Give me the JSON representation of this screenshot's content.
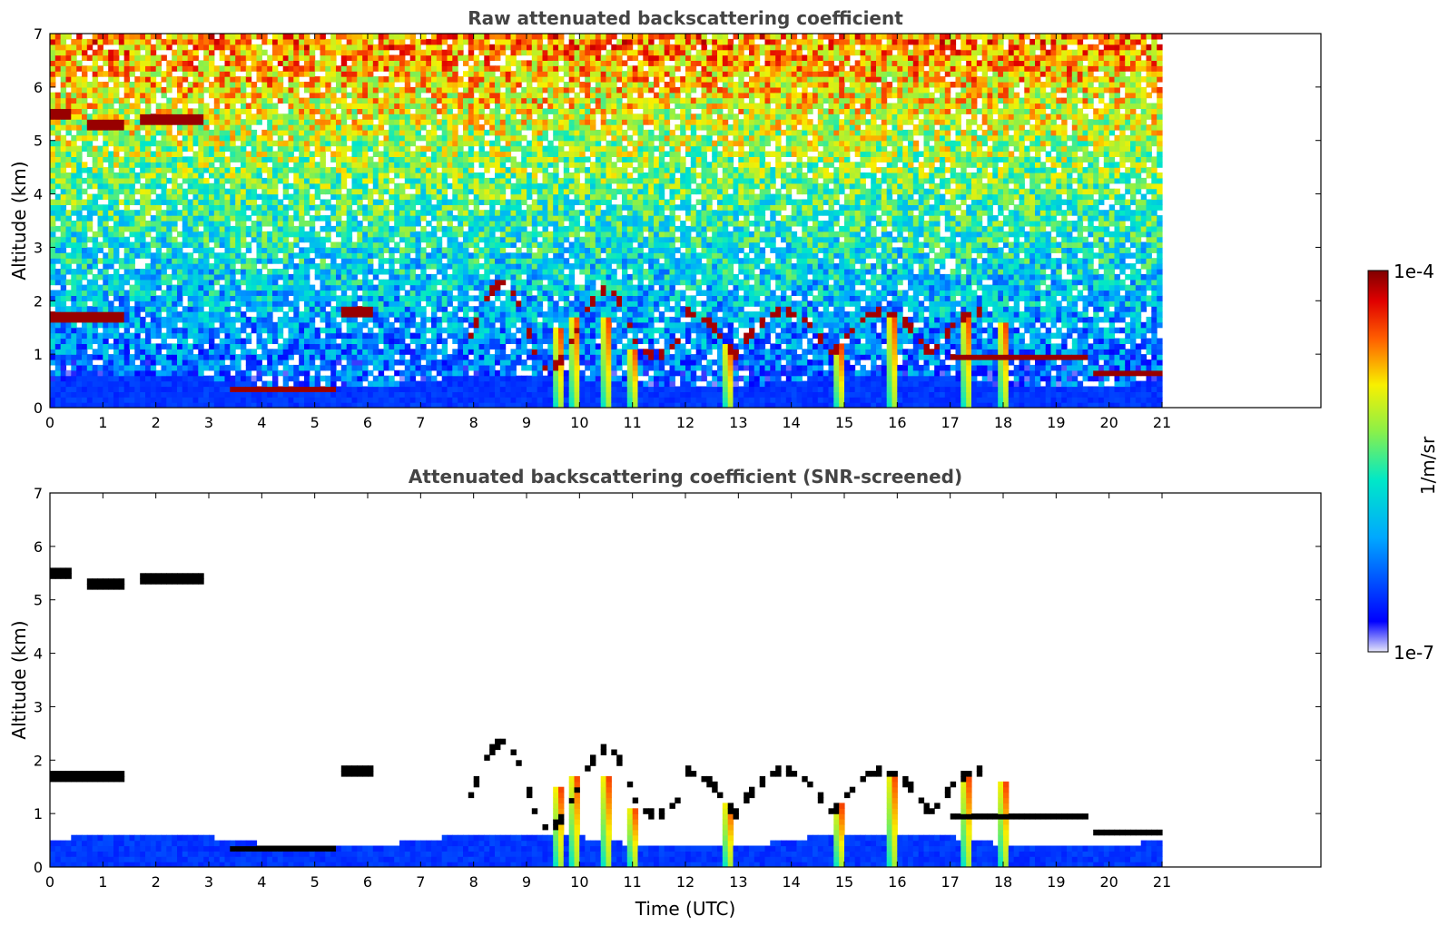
{
  "chart_data": [
    {
      "type": "heatmap",
      "title": "Raw attenuated backscattering coefficient",
      "xlabel": "",
      "ylabel": "Altitude (km)",
      "xlim": [
        0,
        24
      ],
      "ylim": [
        0,
        7
      ],
      "x_ticks": [
        "0",
        "1",
        "2",
        "3",
        "4",
        "5",
        "6",
        "7",
        "8",
        "9",
        "10",
        "11",
        "12",
        "13",
        "14",
        "15",
        "16",
        "17",
        "18",
        "19",
        "20",
        "21"
      ],
      "y_ticks": [
        "0",
        "1",
        "2",
        "3",
        "4",
        "5",
        "6",
        "7"
      ],
      "data_extent_hours": [
        0,
        21
      ],
      "features": {
        "boundary_layer_top_km": 0.5,
        "upper_cloud_layers": [
          {
            "time_utc": [
              0,
              0.4
            ],
            "alt_km": 5.5
          },
          {
            "time_utc": [
              0.7,
              1.4
            ],
            "alt_km": 5.3
          },
          {
            "time_utc": [
              1.7,
              2.9
            ],
            "alt_km": 5.4
          }
        ],
        "mid_cloud_layers": [
          {
            "time_utc": [
              0,
              1.4
            ],
            "alt_km": 1.7
          },
          {
            "time_utc": [
              5.5,
              6.1
            ],
            "alt_km": 1.8
          }
        ],
        "low_cloud_layers": [
          {
            "time_utc": [
              3.4,
              5.4
            ],
            "alt_km": 0.38
          },
          {
            "time_utc": [
              17,
              19.6
            ],
            "alt_km": 0.95
          },
          {
            "time_utc": [
              19.7,
              21
            ],
            "alt_km": 0.68
          }
        ],
        "convective_clouds_time_utc": [
          7.8,
          17.6
        ],
        "precipitation_time_utc": [
          9.6,
          9.9,
          10.5,
          11.0,
          12.8,
          14.9,
          15.9,
          17.3,
          18.0
        ]
      }
    },
    {
      "type": "heatmap",
      "title": "Attenuated backscattering coefficient (SNR-screened)",
      "xlabel": "Time (UTC)",
      "ylabel": "Altitude (km)",
      "xlim": [
        0,
        24
      ],
      "ylim": [
        0,
        7
      ],
      "x_ticks": [
        "0",
        "1",
        "2",
        "3",
        "4",
        "5",
        "6",
        "7",
        "8",
        "9",
        "10",
        "11",
        "12",
        "13",
        "14",
        "15",
        "16",
        "17",
        "18",
        "19",
        "20",
        "21"
      ],
      "y_ticks": [
        "0",
        "1",
        "2",
        "3",
        "4",
        "5",
        "6",
        "7"
      ],
      "data_extent_hours": [
        0,
        21
      ]
    }
  ],
  "colorbar": {
    "label": "1/m/sr",
    "max_label": "1e-4",
    "min_label": "1e-7",
    "range": [
      1e-07,
      0.0001
    ],
    "colormap": "jet",
    "log_scale": true
  },
  "colors": {
    "title_text": "#444444",
    "axis_text": "#000000",
    "background": "#ffffff"
  }
}
